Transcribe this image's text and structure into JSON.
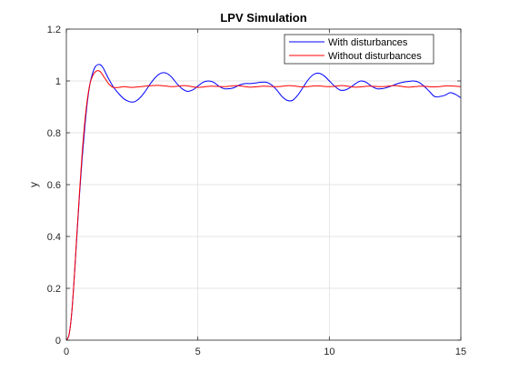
{
  "chart_data": {
    "type": "line",
    "title": "LPV Simulation",
    "xlabel": "",
    "ylabel": "y",
    "xlim": [
      0,
      15
    ],
    "ylim": [
      0,
      1.2
    ],
    "xticks": [
      0,
      5,
      10,
      15
    ],
    "yticks": [
      0,
      0.2,
      0.4,
      0.6,
      0.8,
      1,
      1.2
    ],
    "xtick_labels": [
      "0",
      "5",
      "10",
      "15"
    ],
    "ytick_labels": [
      "0",
      "0.2",
      "0.4",
      "0.6",
      "0.8",
      "1",
      "1.2"
    ],
    "grid": true,
    "legend_position": "top-right",
    "series": [
      {
        "name": "With disturbances",
        "color": "#0000ff",
        "x": [
          0,
          0.1,
          0.2,
          0.3,
          0.4,
          0.5,
          0.6,
          0.7,
          0.8,
          0.9,
          1.0,
          1.1,
          1.2,
          1.3,
          1.4,
          1.5,
          1.6,
          1.8,
          2.0,
          2.2,
          2.4,
          2.6,
          2.8,
          3.0,
          3.2,
          3.4,
          3.6,
          3.8,
          4.0,
          4.2,
          4.4,
          4.6,
          4.8,
          5.0,
          5.2,
          5.4,
          5.6,
          5.8,
          6.0,
          6.2,
          6.4,
          6.6,
          6.8,
          7.0,
          7.2,
          7.4,
          7.6,
          7.8,
          8.0,
          8.2,
          8.4,
          8.6,
          8.8,
          9.0,
          9.2,
          9.4,
          9.6,
          9.8,
          10.0,
          10.2,
          10.4,
          10.6,
          10.8,
          11.0,
          11.2,
          11.4,
          11.6,
          11.8,
          12.0,
          12.2,
          12.4,
          12.6,
          12.8,
          13.0,
          13.2,
          13.4,
          13.6,
          13.8,
          14.0,
          14.2,
          14.4,
          14.6,
          14.8,
          15.0
        ],
        "y": [
          0,
          0.02,
          0.1,
          0.24,
          0.4,
          0.56,
          0.7,
          0.82,
          0.92,
          0.99,
          1.03,
          1.055,
          1.063,
          1.062,
          1.05,
          1.03,
          1.01,
          0.975,
          0.95,
          0.93,
          0.92,
          0.92,
          0.935,
          0.96,
          0.99,
          1.015,
          1.03,
          1.03,
          1.015,
          0.99,
          0.97,
          0.96,
          0.965,
          0.98,
          0.995,
          1.0,
          0.995,
          0.98,
          0.97,
          0.97,
          0.975,
          0.985,
          0.99,
          0.99,
          0.992,
          0.995,
          0.995,
          0.985,
          0.965,
          0.94,
          0.925,
          0.925,
          0.945,
          0.975,
          1.005,
          1.025,
          1.03,
          1.02,
          1.0,
          0.98,
          0.965,
          0.965,
          0.975,
          0.99,
          1.0,
          0.995,
          0.98,
          0.97,
          0.97,
          0.975,
          0.982,
          0.99,
          0.995,
          0.998,
          1.0,
          0.995,
          0.98,
          0.96,
          0.94,
          0.94,
          0.945,
          0.955,
          0.948,
          0.935
        ]
      },
      {
        "name": "Without disturbances",
        "color": "#ff0000",
        "x": [
          0,
          0.1,
          0.2,
          0.3,
          0.4,
          0.5,
          0.6,
          0.7,
          0.8,
          0.9,
          1.0,
          1.1,
          1.2,
          1.3,
          1.4,
          1.5,
          1.6,
          1.7,
          1.8,
          2.0,
          2.2,
          2.5,
          3.0,
          3.5,
          4.0,
          4.5,
          5.0,
          5.5,
          6.0,
          6.5,
          7.0,
          7.5,
          8.0,
          8.5,
          9.0,
          9.5,
          10.0,
          10.5,
          11.0,
          11.5,
          12.0,
          12.5,
          13.0,
          13.5,
          14.0,
          14.5,
          15.0
        ],
        "y": [
          0,
          0.02,
          0.1,
          0.24,
          0.41,
          0.57,
          0.72,
          0.84,
          0.93,
          0.99,
          1.02,
          1.035,
          1.04,
          1.035,
          1.02,
          1.005,
          0.99,
          0.98,
          0.975,
          0.975,
          0.978,
          0.975,
          0.98,
          0.983,
          0.978,
          0.982,
          0.975,
          0.98,
          0.978,
          0.982,
          0.976,
          0.98,
          0.978,
          0.982,
          0.977,
          0.981,
          0.978,
          0.982,
          0.976,
          0.98,
          0.978,
          0.982,
          0.976,
          0.98,
          0.977,
          0.981,
          0.978
        ]
      }
    ]
  }
}
